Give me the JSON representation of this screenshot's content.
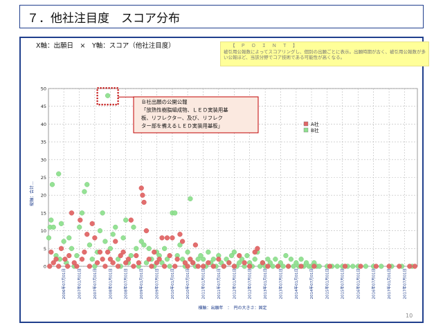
{
  "header": {
    "title": "７．他社注目度　スコア分布"
  },
  "subtitle": "X軸：出願日　×　Y軸：スコア（他社注目度）",
  "point_box": {
    "heading": "【　Ｐ　Ｏ　Ｉ　Ｎ　Ｔ　】",
    "body": "被引用公報数によってスコアリングし、個別の出願ごとに表示。出願時期が古く、被引用公報数が多い公報ほど、当該分野でコア技術である可能性が高くなる。"
  },
  "callout": {
    "lines": [
      "Ｂ社出願の公開公報",
      "「放熱性樹脂組成物、ＬＥＤ実装用基",
      "板、リフレクター、及び、リフレク",
      "ター部を備えるＬＥＤ実装用基板」"
    ]
  },
  "page_number": "10",
  "colors": {
    "series_a": "#e06666",
    "series_b": "#8fe08f",
    "callout_border": "#c00000",
    "frame": "#1f3e8c"
  },
  "chart_data": {
    "type": "scatter",
    "xlabel": "横軸：出願年　：　円の大きさ：固定",
    "ylabel": "縦軸：合計…",
    "ylim": [
      0,
      50
    ],
    "yticks": [
      0,
      5,
      10,
      15,
      20,
      25,
      30,
      35,
      40,
      45,
      50
    ],
    "xlim": [
      "2006-01-01",
      "2017-12-01"
    ],
    "xticks": [
      "2006年07月01日",
      "2007年01月01日",
      "2007年07月01日",
      "2008年01月01日",
      "2008年07月01日",
      "2009年01月01日",
      "2009年07月01日",
      "2010年01月01日",
      "2010年07月01日",
      "2011年01月01日",
      "2011年07月01日",
      "2012年01月01日",
      "2012年07月01日",
      "2013年01月01日",
      "2013年07月01日",
      "2014年01月01日",
      "2014年07月01日",
      "2015年01月01日",
      "2015年07月01日",
      "2016年01月01日",
      "2016年07月01日",
      "2017年01月01日",
      "2017年07月01日"
    ],
    "legend_position": "right",
    "series": [
      {
        "name": "A社",
        "points": [
          [
            "2006-01-15",
            0
          ],
          [
            "2006-02-01",
            4
          ],
          [
            "2006-03-01",
            1
          ],
          [
            "2006-04-01",
            2
          ],
          [
            "2006-05-01",
            0
          ],
          [
            "2006-06-01",
            5
          ],
          [
            "2006-07-15",
            2
          ],
          [
            "2006-08-15",
            0
          ],
          [
            "2006-09-01",
            3
          ],
          [
            "2006-10-01",
            15
          ],
          [
            "2006-11-01",
            1
          ],
          [
            "2006-12-01",
            0
          ],
          [
            "2007-01-10",
            13
          ],
          [
            "2007-02-01",
            2
          ],
          [
            "2007-03-01",
            4
          ],
          [
            "2007-04-01",
            9
          ],
          [
            "2007-05-01",
            0
          ],
          [
            "2007-06-01",
            12
          ],
          [
            "2007-07-01",
            8
          ],
          [
            "2007-08-01",
            1
          ],
          [
            "2007-09-01",
            4
          ],
          [
            "2007-10-01",
            2
          ],
          [
            "2007-11-01",
            0
          ],
          [
            "2007-12-01",
            4
          ],
          [
            "2008-01-01",
            2
          ],
          [
            "2008-02-01",
            1
          ],
          [
            "2008-03-01",
            7
          ],
          [
            "2008-04-01",
            0
          ],
          [
            "2008-05-01",
            3
          ],
          [
            "2008-06-01",
            4
          ],
          [
            "2008-07-01",
            1
          ],
          [
            "2008-08-01",
            2
          ],
          [
            "2008-09-01",
            13
          ],
          [
            "2008-10-01",
            0
          ],
          [
            "2008-11-01",
            3
          ],
          [
            "2008-12-01",
            1
          ],
          [
            "2009-01-01",
            22
          ],
          [
            "2009-01-15",
            20
          ],
          [
            "2009-02-01",
            18
          ],
          [
            "2009-03-01",
            10
          ],
          [
            "2009-04-01",
            2
          ],
          [
            "2009-05-01",
            0
          ],
          [
            "2009-06-01",
            4
          ],
          [
            "2009-07-01",
            1
          ],
          [
            "2009-08-01",
            2
          ],
          [
            "2009-09-01",
            8
          ],
          [
            "2009-10-01",
            0
          ],
          [
            "2009-11-01",
            8
          ],
          [
            "2009-12-01",
            3
          ],
          [
            "2010-01-01",
            8
          ],
          [
            "2010-02-01",
            0
          ],
          [
            "2010-03-01",
            2
          ],
          [
            "2010-04-01",
            9
          ],
          [
            "2010-05-01",
            7
          ],
          [
            "2010-06-01",
            1
          ],
          [
            "2010-07-01",
            0
          ],
          [
            "2010-08-01",
            2
          ],
          [
            "2010-09-01",
            1
          ],
          [
            "2010-10-01",
            6
          ],
          [
            "2010-11-01",
            0
          ],
          [
            "2011-01-01",
            0
          ],
          [
            "2011-03-01",
            1
          ],
          [
            "2011-05-01",
            0
          ],
          [
            "2011-07-01",
            2
          ],
          [
            "2011-09-01",
            0
          ],
          [
            "2011-11-01",
            1
          ],
          [
            "2012-01-01",
            0
          ],
          [
            "2012-03-01",
            3
          ],
          [
            "2012-05-01",
            1
          ],
          [
            "2012-07-01",
            0
          ],
          [
            "2012-09-01",
            4
          ],
          [
            "2012-10-01",
            5
          ],
          [
            "2012-12-01",
            1
          ],
          [
            "2013-02-01",
            0
          ],
          [
            "2013-06-01",
            0
          ],
          [
            "2013-10-01",
            0
          ],
          [
            "2014-03-01",
            0
          ],
          [
            "2014-08-01",
            0
          ],
          [
            "2015-02-01",
            0
          ],
          [
            "2015-08-01",
            0
          ],
          [
            "2016-02-01",
            0
          ],
          [
            "2016-08-01",
            0
          ],
          [
            "2017-01-01",
            0
          ],
          [
            "2017-05-01",
            0
          ],
          [
            "2017-09-01",
            0
          ],
          [
            "2017-11-01",
            0
          ]
        ]
      },
      {
        "name": "B社",
        "points": [
          [
            "2006-01-05",
            8
          ],
          [
            "2006-01-20",
            11
          ],
          [
            "2006-02-01",
            13
          ],
          [
            "2006-02-15",
            23
          ],
          [
            "2006-03-01",
            11
          ],
          [
            "2006-04-01",
            3
          ],
          [
            "2006-05-01",
            26
          ],
          [
            "2006-05-15",
            2
          ],
          [
            "2006-06-01",
            12
          ],
          [
            "2006-07-01",
            7
          ],
          [
            "2006-08-01",
            1
          ],
          [
            "2006-09-01",
            8
          ],
          [
            "2006-10-01",
            5
          ],
          [
            "2006-11-01",
            0
          ],
          [
            "2006-12-01",
            3
          ],
          [
            "2007-01-01",
            11
          ],
          [
            "2007-02-01",
            15
          ],
          [
            "2007-03-01",
            21
          ],
          [
            "2007-04-01",
            23
          ],
          [
            "2007-05-01",
            6
          ],
          [
            "2007-06-01",
            2
          ],
          [
            "2007-07-01",
            0
          ],
          [
            "2007-08-01",
            4
          ],
          [
            "2007-09-01",
            10
          ],
          [
            "2007-10-01",
            15
          ],
          [
            "2007-11-01",
            7
          ],
          [
            "2007-12-01",
            48
          ],
          [
            "2008-01-01",
            5
          ],
          [
            "2008-02-01",
            9
          ],
          [
            "2008-03-01",
            11
          ],
          [
            "2008-04-01",
            2
          ],
          [
            "2008-05-01",
            0
          ],
          [
            "2008-06-01",
            8
          ],
          [
            "2008-07-01",
            13
          ],
          [
            "2008-08-01",
            1
          ],
          [
            "2008-09-01",
            3
          ],
          [
            "2008-10-01",
            11
          ],
          [
            "2008-11-01",
            5
          ],
          [
            "2008-12-01",
            0
          ],
          [
            "2009-01-01",
            7
          ],
          [
            "2009-02-01",
            6
          ],
          [
            "2009-03-01",
            1
          ],
          [
            "2009-04-01",
            5
          ],
          [
            "2009-05-01",
            2
          ],
          [
            "2009-06-01",
            0
          ],
          [
            "2009-07-01",
            4
          ],
          [
            "2009-08-01",
            3
          ],
          [
            "2009-09-01",
            1
          ],
          [
            "2009-10-01",
            5
          ],
          [
            "2009-11-01",
            2
          ],
          [
            "2009-12-01",
            0
          ],
          [
            "2010-01-01",
            15
          ],
          [
            "2010-02-01",
            15
          ],
          [
            "2010-03-01",
            3
          ],
          [
            "2010-04-01",
            6
          ],
          [
            "2010-05-01",
            2
          ],
          [
            "2010-06-01",
            0
          ],
          [
            "2010-07-01",
            4
          ],
          [
            "2010-08-01",
            19
          ],
          [
            "2010-09-01",
            1
          ],
          [
            "2010-10-01",
            0
          ],
          [
            "2010-11-01",
            2
          ],
          [
            "2010-12-01",
            3
          ],
          [
            "2011-01-01",
            2
          ],
          [
            "2011-02-01",
            0
          ],
          [
            "2011-03-01",
            4
          ],
          [
            "2011-04-01",
            1
          ],
          [
            "2011-05-01",
            2
          ],
          [
            "2011-06-01",
            0
          ],
          [
            "2011-07-01",
            3
          ],
          [
            "2011-08-01",
            1
          ],
          [
            "2011-09-01",
            0
          ],
          [
            "2011-10-01",
            2
          ],
          [
            "2011-11-01",
            1
          ],
          [
            "2011-12-01",
            3
          ],
          [
            "2012-01-01",
            4
          ],
          [
            "2012-02-01",
            0
          ],
          [
            "2012-03-01",
            1
          ],
          [
            "2012-04-01",
            2
          ],
          [
            "2012-05-01",
            0
          ],
          [
            "2012-06-01",
            3
          ],
          [
            "2012-07-01",
            1
          ],
          [
            "2012-08-01",
            0
          ],
          [
            "2012-09-01",
            2
          ],
          [
            "2012-10-01",
            4
          ],
          [
            "2012-11-01",
            0
          ],
          [
            "2012-12-01",
            1
          ],
          [
            "2013-01-01",
            0
          ],
          [
            "2013-02-01",
            2
          ],
          [
            "2013-03-01",
            1
          ],
          [
            "2013-04-01",
            0
          ],
          [
            "2013-05-01",
            2
          ],
          [
            "2013-06-01",
            0
          ],
          [
            "2013-07-01",
            1
          ],
          [
            "2013-08-01",
            0
          ],
          [
            "2013-09-01",
            3
          ],
          [
            "2013-10-01",
            0
          ],
          [
            "2013-11-01",
            2
          ],
          [
            "2013-12-01",
            0
          ],
          [
            "2014-01-01",
            1
          ],
          [
            "2014-02-01",
            0
          ],
          [
            "2014-03-01",
            2
          ],
          [
            "2014-04-01",
            0
          ],
          [
            "2014-05-01",
            1
          ],
          [
            "2014-06-01",
            0
          ],
          [
            "2014-07-01",
            0
          ],
          [
            "2014-08-01",
            1
          ],
          [
            "2014-09-01",
            0
          ],
          [
            "2014-10-01",
            0
          ],
          [
            "2015-01-01",
            0
          ],
          [
            "2015-03-01",
            0
          ],
          [
            "2015-05-01",
            0
          ],
          [
            "2015-07-01",
            0
          ],
          [
            "2015-09-01",
            0
          ],
          [
            "2015-11-01",
            0
          ],
          [
            "2016-01-01",
            0
          ],
          [
            "2016-04-01",
            0
          ],
          [
            "2016-07-01",
            0
          ],
          [
            "2016-10-01",
            0
          ],
          [
            "2017-02-01",
            0
          ],
          [
            "2017-06-01",
            0
          ],
          [
            "2017-10-01",
            0
          ]
        ]
      }
    ]
  }
}
